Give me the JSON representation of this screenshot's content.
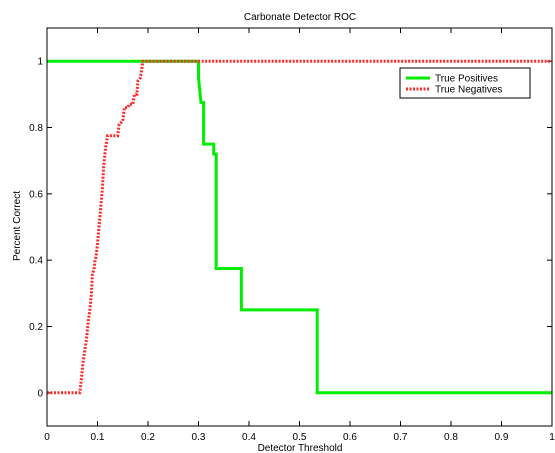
{
  "chart_data": {
    "type": "line",
    "title": "Carbonate Detector ROC",
    "xlabel": "Detector Threshold",
    "ylabel": "Percent Correct",
    "xlim": [
      0,
      1
    ],
    "ylim": [
      -0.1,
      1.1
    ],
    "xticks": [
      0,
      0.1,
      0.2,
      0.3,
      0.4,
      0.5,
      0.6,
      0.7,
      0.8,
      0.9,
      1
    ],
    "xtick_labels": [
      "0",
      "0.1",
      "0.2",
      "0.3",
      "0.4",
      "0.5",
      "0.6",
      "0.7",
      "0.8",
      "0.9",
      "1"
    ],
    "yticks": [
      0,
      0.2,
      0.4,
      0.6,
      0.8,
      1
    ],
    "ytick_labels": [
      "0",
      "0.2",
      "0.4",
      "0.6",
      "0.8",
      "1"
    ],
    "grid": false,
    "legend_position": "top-right",
    "series": [
      {
        "name": "True Positives",
        "color": "#00ee00",
        "style": "solid",
        "x": [
          0,
          0.3,
          0.3,
          0.305,
          0.31,
          0.31,
          0.33,
          0.33,
          0.335,
          0.335,
          0.385,
          0.385,
          0.385,
          0.535,
          0.535,
          1
        ],
        "y": [
          1,
          1,
          0.95,
          0.875,
          0.875,
          0.75,
          0.75,
          0.72,
          0.72,
          0.375,
          0.375,
          0.3,
          0.25,
          0.25,
          0,
          0
        ]
      },
      {
        "name": "True Negatives",
        "color": "#ff2a2a",
        "style": "dotted",
        "x": [
          0,
          0.065,
          0.068,
          0.07,
          0.072,
          0.075,
          0.078,
          0.08,
          0.082,
          0.085,
          0.088,
          0.09,
          0.093,
          0.095,
          0.097,
          0.1,
          0.103,
          0.106,
          0.11,
          0.112,
          0.116,
          0.12,
          0.14,
          0.143,
          0.15,
          0.153,
          0.16,
          0.163,
          0.17,
          0.173,
          0.178,
          0.18,
          0.185,
          0.19,
          1
        ],
        "y": [
          0,
          0,
          0.04,
          0.07,
          0.1,
          0.13,
          0.16,
          0.19,
          0.22,
          0.25,
          0.3,
          0.36,
          0.37,
          0.4,
          0.41,
          0.45,
          0.5,
          0.55,
          0.62,
          0.68,
          0.74,
          0.775,
          0.775,
          0.81,
          0.82,
          0.86,
          0.86,
          0.87,
          0.87,
          0.9,
          0.9,
          0.94,
          0.95,
          1,
          1
        ]
      }
    ]
  }
}
